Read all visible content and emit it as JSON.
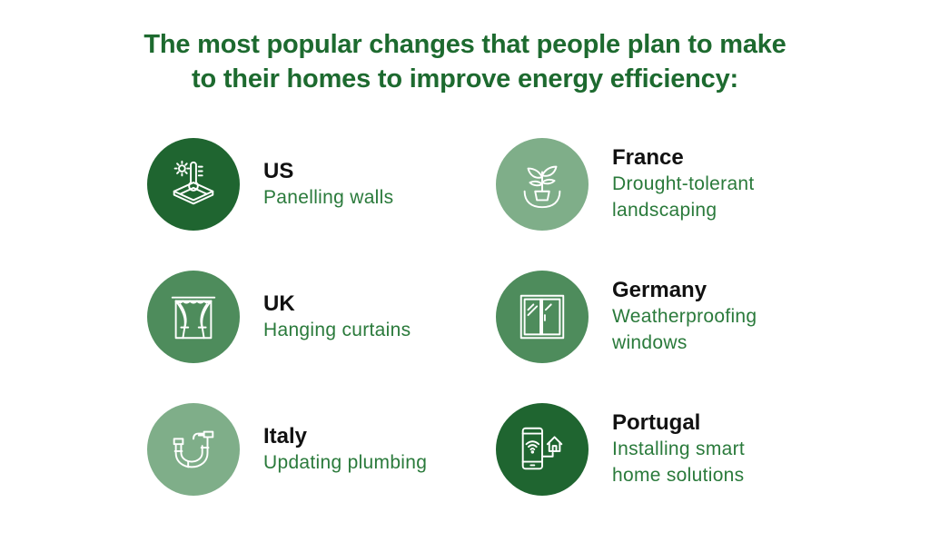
{
  "title": {
    "line1": "The most popular changes that people plan to make",
    "line2": "to their homes to improve energy efficiency:"
  },
  "colors": {
    "title": "#1d6a2f",
    "country_text": "#111111",
    "change_text": "#2a7a3b",
    "circle_dark": "#1f6530",
    "circle_medium": "#4e8c5c",
    "circle_light": "#7fae89",
    "icon_stroke": "#ffffff"
  },
  "items": [
    {
      "country": "US",
      "change_line1": "Panelling walls",
      "change_line2": "",
      "icon": "thermometer-floor-icon",
      "circle_shade": "dark"
    },
    {
      "country": "France",
      "change_line1": "Drought-tolerant",
      "change_line2": "landscaping",
      "icon": "potted-plant-icon",
      "circle_shade": "light"
    },
    {
      "country": "UK",
      "change_line1": "Hanging curtains",
      "change_line2": "",
      "icon": "curtains-icon",
      "circle_shade": "medium"
    },
    {
      "country": "Germany",
      "change_line1": "Weatherproofing",
      "change_line2": "windows",
      "icon": "window-icon",
      "circle_shade": "medium"
    },
    {
      "country": "Italy",
      "change_line1": "Updating plumbing",
      "change_line2": "",
      "icon": "pipe-icon",
      "circle_shade": "light"
    },
    {
      "country": "Portugal",
      "change_line1": "Installing smart",
      "change_line2": "home solutions",
      "icon": "smart-home-phone-icon",
      "circle_shade": "dark"
    }
  ]
}
